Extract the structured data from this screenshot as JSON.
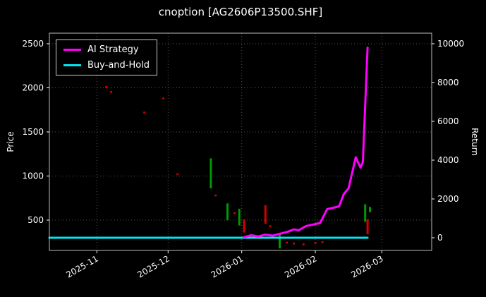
{
  "chart_data": {
    "type": "line",
    "title": "cnoption [AG2606P13500.SHF]",
    "grid": true,
    "legend_position": "upper-left",
    "colors": {
      "background": "#000000",
      "text": "#ffffff",
      "grid": "#555555",
      "spine": "#bbbbbb",
      "candle_up": "#009900",
      "candle_down": "#d40000",
      "ai_strategy": "#ff00ff",
      "buy_and_hold": "#00e5ee"
    },
    "x_axis": {
      "range": [
        "2025-10-12",
        "2026-03-22"
      ],
      "ticks": [
        {
          "label": "2025-11",
          "date": "2025-11-01"
        },
        {
          "label": "2025-12",
          "date": "2025-12-01"
        },
        {
          "label": "2026-01",
          "date": "2026-01-01"
        },
        {
          "label": "2026-02",
          "date": "2026-02-01"
        },
        {
          "label": "2026-03",
          "date": "2026-03-01"
        }
      ]
    },
    "y_left": {
      "label": "Price",
      "range": [
        156,
        2620
      ],
      "ticks": [
        500,
        1000,
        1500,
        2000,
        2500
      ]
    },
    "y_right": {
      "label": "Return",
      "range": [
        -654,
        10545
      ],
      "ticks": [
        0,
        2000,
        4000,
        6000,
        8000,
        10000
      ]
    },
    "legend": [
      {
        "label": "AI Strategy",
        "color": "#ff00ff"
      },
      {
        "label": "Buy-and-Hold",
        "color": "#00e5ee"
      }
    ],
    "series": [
      {
        "name": "AI Strategy",
        "axis": "right",
        "color": "#ff00ff",
        "width": 3,
        "points": [
          [
            "2026-01-02",
            30
          ],
          [
            "2026-01-05",
            130
          ],
          [
            "2026-01-08",
            70
          ],
          [
            "2026-01-11",
            160
          ],
          [
            "2026-01-14",
            110
          ],
          [
            "2026-01-17",
            200
          ],
          [
            "2026-01-20",
            300
          ],
          [
            "2026-01-23",
            430
          ],
          [
            "2026-01-25",
            390
          ],
          [
            "2026-01-28",
            600
          ],
          [
            "2026-01-31",
            680
          ],
          [
            "2026-02-03",
            760
          ],
          [
            "2026-02-06",
            1480
          ],
          [
            "2026-02-09",
            1560
          ],
          [
            "2026-02-11",
            1620
          ],
          [
            "2026-02-13",
            2250
          ],
          [
            "2026-02-15",
            2550
          ],
          [
            "2026-02-18",
            4150
          ],
          [
            "2026-02-20",
            3620
          ],
          [
            "2026-02-21",
            3900
          ],
          [
            "2026-02-23",
            9800
          ]
        ]
      },
      {
        "name": "Buy-and-Hold",
        "axis": "right",
        "color": "#00e5ee",
        "width": 3,
        "points": [
          [
            "2025-10-12",
            0
          ],
          [
            "2026-02-23",
            0
          ]
        ]
      }
    ],
    "candles": [
      {
        "date": "2025-11-05",
        "low": 1995,
        "high": 2020,
        "dir": "down"
      },
      {
        "date": "2025-11-07",
        "low": 1945,
        "high": 1965,
        "dir": "down"
      },
      {
        "date": "2025-11-21",
        "low": 1710,
        "high": 1730,
        "dir": "down"
      },
      {
        "date": "2025-11-29",
        "low": 1870,
        "high": 1890,
        "dir": "down"
      },
      {
        "date": "2025-12-05",
        "low": 1010,
        "high": 1030,
        "dir": "down"
      },
      {
        "date": "2025-12-19",
        "low": 860,
        "high": 1200,
        "dir": "up"
      },
      {
        "date": "2025-12-21",
        "low": 770,
        "high": 790,
        "dir": "down"
      },
      {
        "date": "2025-12-26",
        "low": 500,
        "high": 690,
        "dir": "up"
      },
      {
        "date": "2025-12-29",
        "low": 570,
        "high": 590,
        "dir": "down"
      },
      {
        "date": "2025-12-31",
        "low": 440,
        "high": 630,
        "dir": "up"
      },
      {
        "date": "2026-01-02",
        "low": 360,
        "high": 510,
        "dir": "down"
      },
      {
        "date": "2026-01-05",
        "low": 295,
        "high": 315,
        "dir": "down"
      },
      {
        "date": "2026-01-11",
        "low": 460,
        "high": 670,
        "dir": "down"
      },
      {
        "date": "2026-01-13",
        "low": 420,
        "high": 440,
        "dir": "down"
      },
      {
        "date": "2026-01-17",
        "low": 180,
        "high": 350,
        "dir": "up"
      },
      {
        "date": "2026-01-20",
        "low": 235,
        "high": 255,
        "dir": "down"
      },
      {
        "date": "2026-01-23",
        "low": 225,
        "high": 245,
        "dir": "down"
      },
      {
        "date": "2026-01-27",
        "low": 215,
        "high": 235,
        "dir": "down"
      },
      {
        "date": "2026-02-01",
        "low": 230,
        "high": 250,
        "dir": "down"
      },
      {
        "date": "2026-02-04",
        "low": 240,
        "high": 260,
        "dir": "down"
      },
      {
        "date": "2026-02-22",
        "low": 480,
        "high": 680,
        "dir": "up"
      },
      {
        "date": "2026-02-23",
        "low": 340,
        "high": 510,
        "dir": "down"
      },
      {
        "date": "2026-02-24",
        "low": 590,
        "high": 650,
        "dir": "up"
      }
    ]
  }
}
